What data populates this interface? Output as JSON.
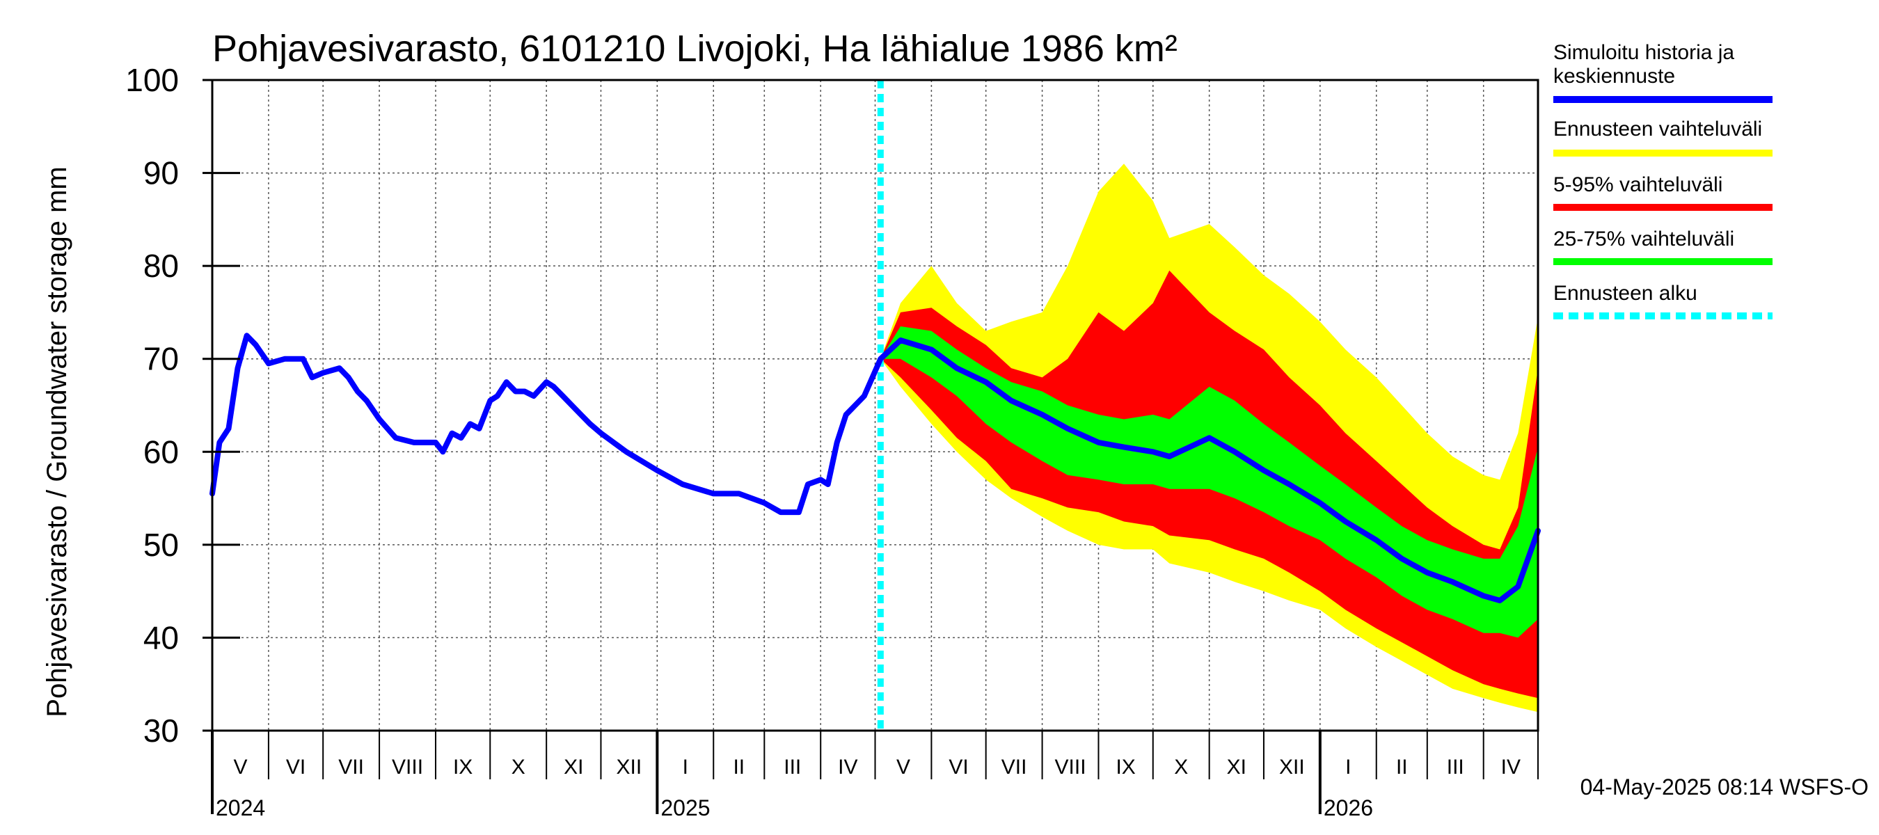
{
  "chart_data": {
    "type": "area",
    "title": "Pohjavesivarasto, 6101210 Livojoki, Ha lähialue 1986 km²",
    "ylabel": "Pohjavesivarasto / Groundwater storage   mm",
    "ylim": [
      30,
      100
    ],
    "yticks": [
      30,
      40,
      50,
      60,
      70,
      80,
      90,
      100
    ],
    "grid": true,
    "legend_position": "right",
    "forecast_start": "2025-05-04",
    "months": [
      {
        "label": "V",
        "start": "2024-05-01"
      },
      {
        "label": "VI",
        "start": "2024-06-01"
      },
      {
        "label": "VII",
        "start": "2024-07-01"
      },
      {
        "label": "VIII",
        "start": "2024-08-01"
      },
      {
        "label": "IX",
        "start": "2024-09-01"
      },
      {
        "label": "X",
        "start": "2024-10-01"
      },
      {
        "label": "XI",
        "start": "2024-11-01"
      },
      {
        "label": "XII",
        "start": "2024-12-01"
      },
      {
        "label": "I",
        "start": "2025-01-01"
      },
      {
        "label": "II",
        "start": "2025-02-01"
      },
      {
        "label": "III",
        "start": "2025-03-01"
      },
      {
        "label": "IV",
        "start": "2025-04-01"
      },
      {
        "label": "V",
        "start": "2025-05-01"
      },
      {
        "label": "VI",
        "start": "2025-06-01"
      },
      {
        "label": "VII",
        "start": "2025-07-01"
      },
      {
        "label": "VIII",
        "start": "2025-08-01"
      },
      {
        "label": "IX",
        "start": "2025-09-01"
      },
      {
        "label": "X",
        "start": "2025-10-01"
      },
      {
        "label": "XI",
        "start": "2025-11-01"
      },
      {
        "label": "XII",
        "start": "2025-12-01"
      },
      {
        "label": "I",
        "start": "2026-01-01"
      },
      {
        "label": "II",
        "start": "2026-02-01"
      },
      {
        "label": "III",
        "start": "2026-03-01"
      },
      {
        "label": "IV",
        "start": "2026-04-01"
      },
      {
        "label": "",
        "start": "2026-05-01"
      }
    ],
    "years": [
      {
        "label": "2024",
        "start": "2024-05-01"
      },
      {
        "label": "2025",
        "start": "2025-01-01"
      },
      {
        "label": "2026",
        "start": "2026-01-01"
      }
    ],
    "x_range": [
      "2024-05-01",
      "2026-05-01"
    ],
    "history": {
      "x": [
        "2024-05-01",
        "2024-05-05",
        "2024-05-10",
        "2024-05-15",
        "2024-05-20",
        "2024-05-25",
        "2024-06-01",
        "2024-06-10",
        "2024-06-20",
        "2024-06-25",
        "2024-07-01",
        "2024-07-10",
        "2024-07-15",
        "2024-07-20",
        "2024-07-25",
        "2024-08-01",
        "2024-08-10",
        "2024-08-20",
        "2024-09-01",
        "2024-09-05",
        "2024-09-10",
        "2024-09-15",
        "2024-09-20",
        "2024-09-25",
        "2024-10-01",
        "2024-10-05",
        "2024-10-10",
        "2024-10-15",
        "2024-10-20",
        "2024-10-25",
        "2024-11-01",
        "2024-11-05",
        "2024-11-10",
        "2024-11-15",
        "2024-11-20",
        "2024-11-25",
        "2024-12-01",
        "2024-12-15",
        "2025-01-01",
        "2025-01-15",
        "2025-02-01",
        "2025-02-15",
        "2025-03-01",
        "2025-03-10",
        "2025-03-20",
        "2025-03-25",
        "2025-04-01",
        "2025-04-05",
        "2025-04-10",
        "2025-04-15",
        "2025-04-20",
        "2025-04-25",
        "2025-05-04"
      ],
      "values": [
        55.5,
        61,
        62.5,
        69,
        72.5,
        71.5,
        69.5,
        70,
        70,
        68,
        68.5,
        69,
        68,
        66.5,
        65.5,
        63.5,
        61.5,
        61,
        61,
        60,
        62,
        61.5,
        63,
        62.5,
        65.5,
        66,
        67.5,
        66.5,
        66.5,
        66,
        67.5,
        67,
        66,
        65,
        64,
        63,
        62,
        60,
        58,
        56.5,
        55.5,
        55.5,
        54.5,
        53.5,
        53.5,
        56.5,
        57,
        56.5,
        61,
        64,
        65,
        66,
        70
      ]
    },
    "series": [
      {
        "name": "Simuloitu historia ja keskiennuste",
        "color": "#0000ff",
        "x": [
          "2025-05-04",
          "2025-05-15",
          "2025-06-01",
          "2025-06-15",
          "2025-07-01",
          "2025-07-15",
          "2025-08-01",
          "2025-08-15",
          "2025-09-01",
          "2025-09-15",
          "2025-10-01",
          "2025-10-10",
          "2025-11-01",
          "2025-11-15",
          "2025-12-01",
          "2025-12-15",
          "2026-01-01",
          "2026-01-15",
          "2026-02-01",
          "2026-02-15",
          "2026-03-01",
          "2026-03-15",
          "2026-04-01",
          "2026-04-10",
          "2026-04-20",
          "2026-05-01"
        ],
        "values": [
          70,
          72,
          71,
          69,
          67.5,
          65.5,
          64,
          62.5,
          61,
          60.5,
          60,
          59.5,
          61.5,
          60,
          58,
          56.5,
          54.5,
          52.5,
          50.5,
          48.5,
          47,
          46,
          44.5,
          44,
          45.5,
          51.5
        ]
      },
      {
        "name": "Ennusteen vaihteluväli",
        "color": "#ffff00",
        "x": [
          "2025-05-04",
          "2025-05-15",
          "2025-06-01",
          "2025-06-15",
          "2025-07-01",
          "2025-07-15",
          "2025-08-01",
          "2025-08-15",
          "2025-09-01",
          "2025-09-15",
          "2025-10-01",
          "2025-10-10",
          "2025-11-01",
          "2025-11-15",
          "2025-12-01",
          "2025-12-15",
          "2026-01-01",
          "2026-01-15",
          "2026-02-01",
          "2026-02-15",
          "2026-03-01",
          "2026-03-15",
          "2026-04-01",
          "2026-04-10",
          "2026-04-20",
          "2026-05-01"
        ],
        "upper": [
          70,
          76,
          80,
          76,
          73,
          74,
          75,
          80,
          88,
          91,
          87,
          83,
          84.5,
          82,
          79,
          77,
          74,
          71,
          68,
          65,
          62,
          59.5,
          57.5,
          57,
          62,
          74.5
        ],
        "lower": [
          70,
          67,
          63,
          60,
          57,
          55,
          53,
          51.5,
          50,
          49.5,
          49.5,
          48,
          47,
          46,
          45,
          44,
          43,
          41,
          39,
          37.5,
          36,
          34.5,
          33.5,
          33,
          32.5,
          32
        ]
      },
      {
        "name": "5-95% vaihteluväli",
        "color": "#ff0000",
        "x": [
          "2025-05-04",
          "2025-05-15",
          "2025-06-01",
          "2025-06-15",
          "2025-07-01",
          "2025-07-15",
          "2025-08-01",
          "2025-08-15",
          "2025-09-01",
          "2025-09-15",
          "2025-10-01",
          "2025-10-10",
          "2025-11-01",
          "2025-11-15",
          "2025-12-01",
          "2025-12-15",
          "2026-01-01",
          "2026-01-15",
          "2026-02-01",
          "2026-02-15",
          "2026-03-01",
          "2026-03-15",
          "2026-04-01",
          "2026-04-10",
          "2026-04-20",
          "2026-05-01"
        ],
        "upper": [
          70,
          75,
          75.5,
          73.5,
          71.5,
          69,
          68,
          70,
          75,
          73,
          76,
          79.5,
          75,
          73,
          71,
          68,
          65,
          62,
          59,
          56.5,
          54,
          52,
          50,
          49.5,
          54,
          69
        ],
        "lower": [
          70,
          68,
          64.5,
          61.5,
          59,
          56,
          55,
          54,
          53.5,
          52.5,
          52,
          51,
          50.5,
          49.5,
          48.5,
          47,
          45,
          43,
          41,
          39.5,
          38,
          36.5,
          35,
          34.5,
          34,
          33.5
        ]
      },
      {
        "name": "25-75% vaihteluväli",
        "color": "#00ff00",
        "x": [
          "2025-05-04",
          "2025-05-15",
          "2025-06-01",
          "2025-06-15",
          "2025-07-01",
          "2025-07-15",
          "2025-08-01",
          "2025-08-15",
          "2025-09-01",
          "2025-09-15",
          "2025-10-01",
          "2025-10-10",
          "2025-11-01",
          "2025-11-15",
          "2025-12-01",
          "2025-12-15",
          "2026-01-01",
          "2026-01-15",
          "2026-02-01",
          "2026-02-15",
          "2026-03-01",
          "2026-03-15",
          "2026-04-01",
          "2026-04-10",
          "2026-04-20",
          "2026-05-01"
        ],
        "upper": [
          70,
          73.5,
          73,
          71,
          69,
          67.5,
          66.5,
          65,
          64,
          63.5,
          64,
          63.5,
          67,
          65.5,
          63,
          61,
          58.5,
          56.5,
          54,
          52,
          50.5,
          49.5,
          48.5,
          48.5,
          52,
          60.5
        ],
        "lower": [
          70,
          70,
          68,
          66,
          63,
          61,
          59,
          57.5,
          57,
          56.5,
          56.5,
          56,
          56,
          55,
          53.5,
          52,
          50.5,
          48.5,
          46.5,
          44.5,
          43,
          42,
          40.5,
          40.5,
          40,
          42
        ]
      },
      {
        "name": "Ennusteen alku",
        "color": "#00ffff"
      }
    ],
    "legend": [
      {
        "label": "Simuloitu historia ja keskiennuste",
        "color": "#0000ff",
        "style": "solid"
      },
      {
        "label": "Ennusteen vaihteluväli",
        "color": "#ffff00",
        "style": "solid"
      },
      {
        "label": "5-95% vaihteluväli",
        "color": "#ff0000",
        "style": "solid"
      },
      {
        "label": "25-75% vaihteluväli",
        "color": "#00ff00",
        "style": "solid"
      },
      {
        "label": "Ennusteen alku",
        "color": "#00ffff",
        "style": "dashed"
      }
    ],
    "footer": "04-May-2025 08:14 WSFS-O"
  }
}
